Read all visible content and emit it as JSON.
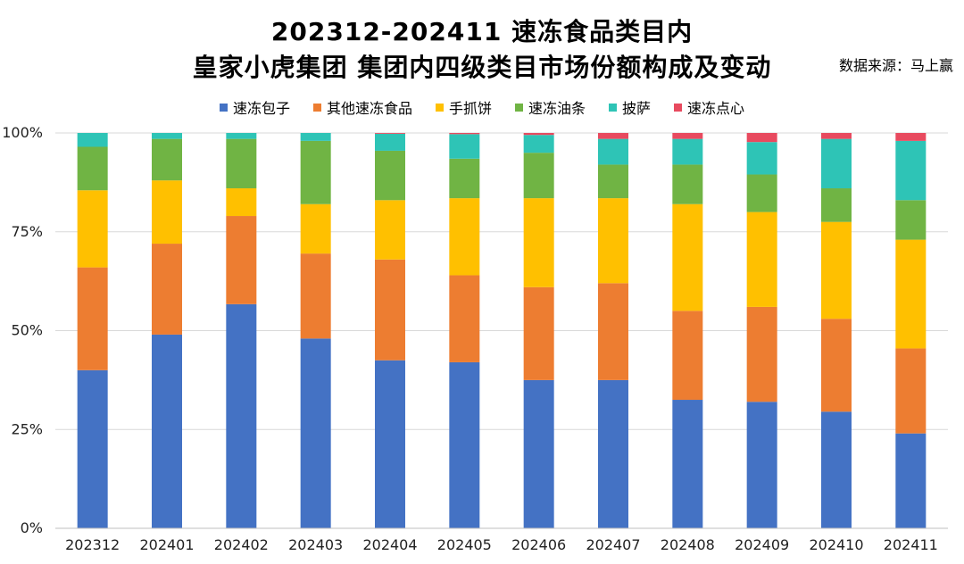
{
  "title": {
    "line1": "202312-202411 速冻食品类目内",
    "line2": "皇家小虎集团 集团内四级类目市场份额构成及变动"
  },
  "source": "数据来源：马上赢",
  "chart_data": {
    "type": "bar",
    "stacked": true,
    "percent": true,
    "categories": [
      "202312",
      "202401",
      "202402",
      "202403",
      "202404",
      "202405",
      "202406",
      "202407",
      "202408",
      "202409",
      "202410",
      "202411"
    ],
    "y_ticks": [
      "0%",
      "25%",
      "50%",
      "75%",
      "100%"
    ],
    "ylim": [
      0,
      100
    ],
    "grid": true,
    "legend_position": "top",
    "series": [
      {
        "name": "速冻包子",
        "color": "#4472C4",
        "values": [
          40,
          49,
          56.7,
          48,
          42.5,
          42,
          37.5,
          37.5,
          32.5,
          32,
          29.5,
          24
        ]
      },
      {
        "name": "其他速冻食品",
        "color": "#ED7D31",
        "values": [
          26,
          23,
          22.3,
          21.5,
          25.5,
          22,
          23.5,
          24.5,
          22.5,
          24,
          23.5,
          21.5
        ]
      },
      {
        "name": "手抓饼",
        "color": "#FFC000",
        "values": [
          19.5,
          16,
          7,
          12.5,
          15,
          19.5,
          22.5,
          21.5,
          27,
          24,
          24.5,
          27.5
        ]
      },
      {
        "name": "速冻油条",
        "color": "#70B444",
        "values": [
          11,
          10.5,
          12.5,
          16,
          12.5,
          10,
          11.5,
          8.5,
          10,
          9.5,
          8.5,
          10
        ]
      },
      {
        "name": "披萨",
        "color": "#2EC4B6",
        "values": [
          3.5,
          1.5,
          1.5,
          2,
          4.3,
          6.2,
          4.5,
          6.5,
          6.5,
          8.2,
          12.5,
          15
        ]
      },
      {
        "name": "速冻点心",
        "color": "#E84A5F",
        "values": [
          0,
          0,
          0,
          0,
          0.2,
          0.3,
          0.5,
          1.5,
          1.5,
          2.3,
          1.5,
          2
        ]
      }
    ]
  }
}
